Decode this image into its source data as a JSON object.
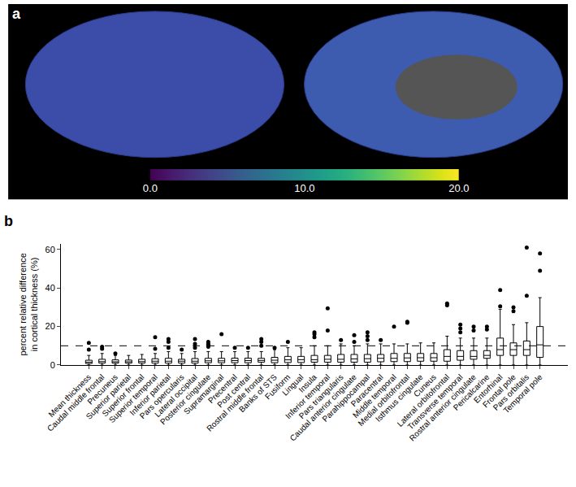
{
  "chart_data": [
    {
      "type": "colorbar",
      "title": "a",
      "color": "Viridis",
      "zlim": [
        0,
        20
      ],
      "ticks": [
        {
          "value": 0,
          "label": "0.0"
        },
        {
          "value": 10,
          "label": "10.0"
        },
        {
          "value": 20,
          "label": "20.0"
        }
      ]
    },
    {
      "type": "box",
      "title": "b",
      "color": "#000000",
      "grid": false,
      "ylabel": "percent relative difference\nin cortical thickness (%)",
      "ylim": [
        0,
        63
      ],
      "yticks": [
        0,
        20,
        40,
        60
      ],
      "hline": 10,
      "categories": [
        "Mean thickness",
        "Caudal middle frontal",
        "Precuneus",
        "Superior parietal",
        "Superior frontal",
        "Superior temporal",
        "Inferior parietal",
        "Pars opercularis",
        "Lateral occipital",
        "Posterior cingulate",
        "Supramarginal",
        "Precentral",
        "Post central",
        "Rostral middle frontal",
        "Banks of STS",
        "Fusiform",
        "Lingual",
        "Insula",
        "Inferior temporal",
        "Pars triangularis",
        "Caudal anterior cingulate",
        "Parahippocampal",
        "Paracentral",
        "Middle temporal",
        "Medial orbitofrontal",
        "Isthmus cingulate",
        "Cuneus",
        "Lateral orbitofrontal",
        "Transverse temporal",
        "Rostral anterior cingulate",
        "Pericalcarine",
        "Entorhinal",
        "Frontal pole",
        "Pars orbitalis",
        "Temporal pole"
      ],
      "q1": [
        0.8,
        1,
        1,
        1,
        1,
        1,
        1,
        1,
        1,
        1.2,
        1.2,
        1.2,
        1.2,
        1.5,
        1.2,
        1.3,
        1.3,
        1.5,
        1.5,
        1.5,
        1.5,
        1.5,
        1.7,
        1.8,
        1.8,
        2,
        2,
        2,
        2.5,
        3,
        3.5,
        5,
        5,
        5,
        4
      ],
      "median": [
        1.5,
        1.8,
        1.7,
        1.7,
        1.8,
        2,
        2,
        2,
        2,
        2.2,
        2.2,
        2.3,
        2.3,
        2.4,
        2.5,
        2.7,
        2.8,
        2.8,
        3,
        3,
        3.2,
        3.3,
        3.5,
        3.5,
        3.7,
        3.8,
        3.8,
        4.5,
        4.5,
        4.5,
        5,
        8,
        8,
        8,
        10.5
      ],
      "q3": [
        2.5,
        3,
        2.7,
        2.6,
        3,
        3.3,
        3.5,
        3,
        3.4,
        3.5,
        3.5,
        3.6,
        3.6,
        3.5,
        4,
        4.5,
        4.5,
        5,
        5,
        5.5,
        5.5,
        5.5,
        5.5,
        6,
        6,
        6,
        6,
        8,
        7.5,
        7.5,
        7.5,
        14,
        11.5,
        12.5,
        20
      ],
      "lower": [
        0,
        0,
        0,
        0,
        0,
        0,
        0,
        0,
        0,
        0,
        0,
        0,
        0,
        0,
        0,
        0,
        0,
        0,
        0,
        0,
        0,
        0,
        0,
        0,
        0,
        0,
        0,
        0,
        0,
        0,
        0,
        0,
        0,
        0,
        0
      ],
      "upper": [
        5,
        6,
        5,
        5,
        5.5,
        6,
        7,
        6,
        7,
        7,
        7,
        7,
        7,
        7,
        8,
        9,
        9,
        10,
        10,
        11,
        10,
        11,
        11,
        11,
        11,
        11.5,
        11.5,
        15,
        14,
        14,
        14,
        29,
        21,
        22,
        35
      ],
      "outliers": [
        [
          8,
          11.5
        ],
        [
          8.5,
          9.5
        ],
        [
          6
        ],
        [],
        [],
        [
          14.5,
          8.5
        ],
        [
          13.5,
          12,
          9
        ],
        [
          8
        ],
        [
          13.5,
          11,
          9
        ],
        [
          12,
          11,
          10.5,
          9.5
        ],
        [
          16
        ],
        [
          9
        ],
        [
          9
        ],
        [
          13.5,
          12,
          10
        ],
        [
          9
        ],
        [
          12
        ],
        [],
        [
          17,
          16,
          14.5
        ],
        [
          29.5,
          18
        ],
        [
          13
        ],
        [
          15.5,
          12
        ],
        [
          17,
          15,
          13
        ],
        [
          13
        ],
        [
          20
        ],
        [
          22.5,
          22
        ],
        [],
        [],
        [
          32,
          31
        ],
        [
          21,
          19,
          17
        ],
        [
          20,
          18
        ],
        [
          20,
          18.5
        ],
        [
          39,
          30.5
        ],
        [
          30,
          28
        ],
        [
          61,
          36
        ],
        [
          58,
          49
        ]
      ]
    }
  ]
}
